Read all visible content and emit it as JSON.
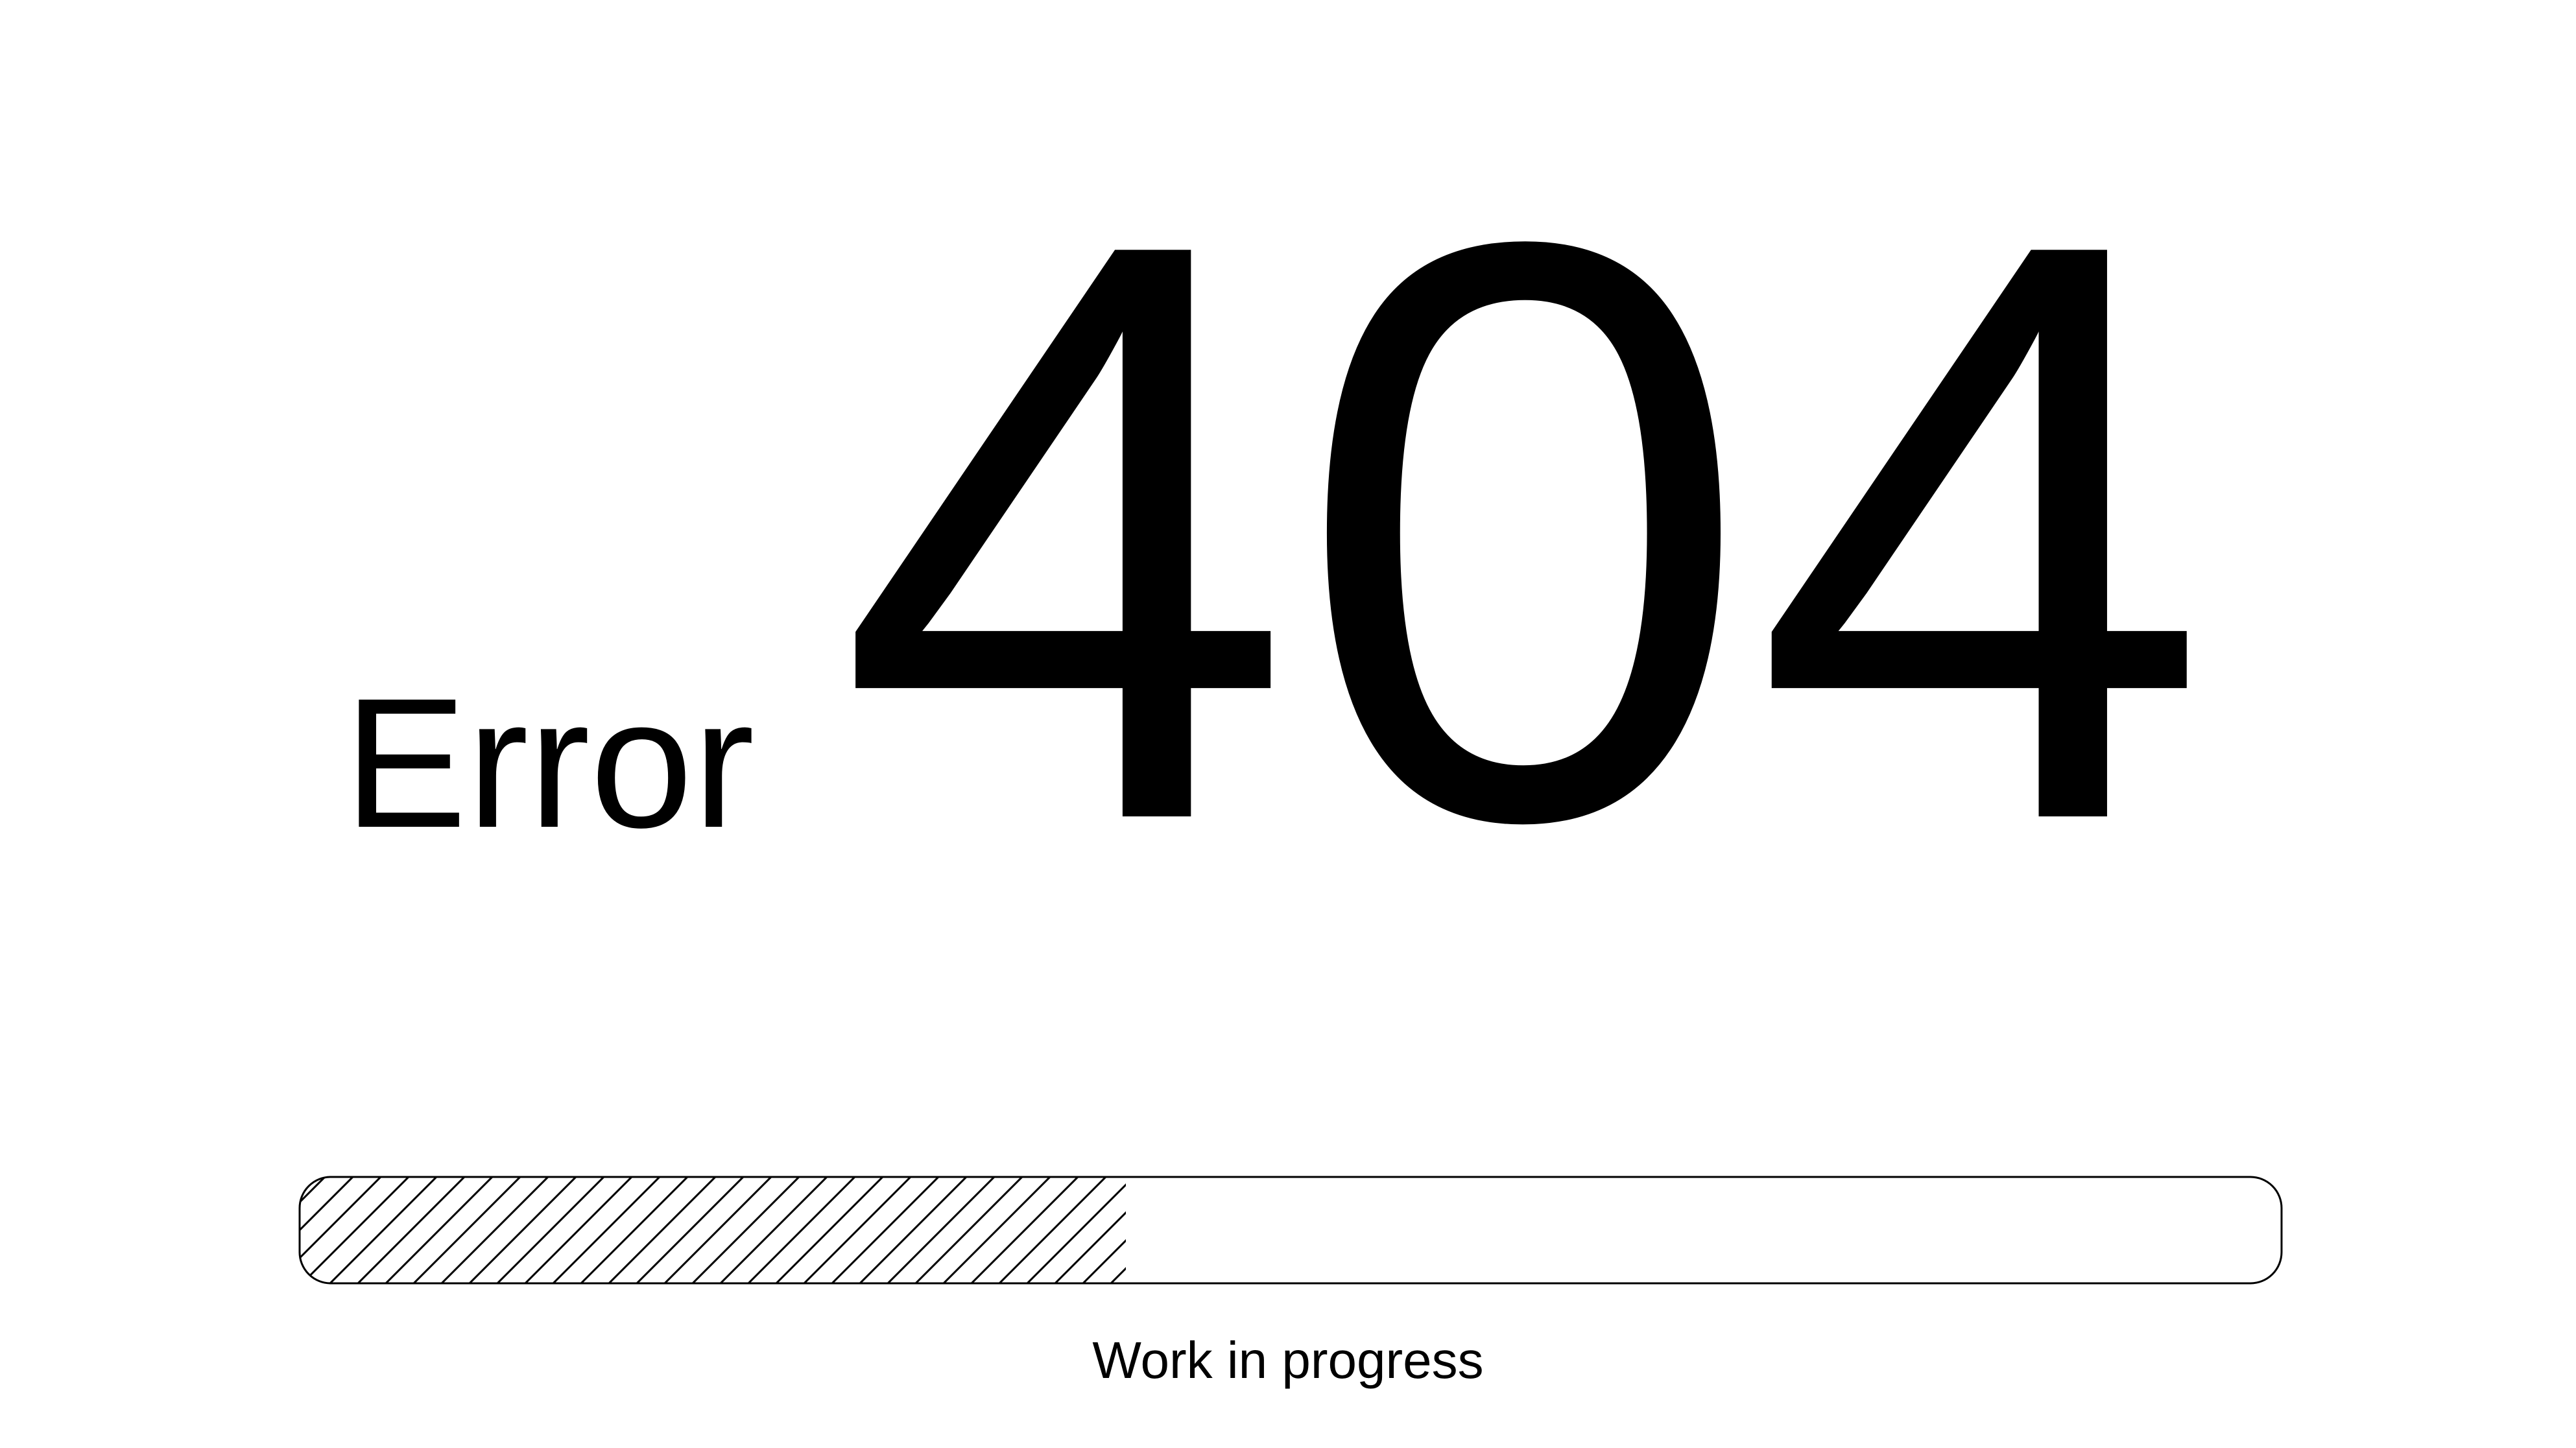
{
  "error": {
    "word": "Error",
    "code": "404"
  },
  "progress": {
    "fraction": 0.417,
    "caption": "Work in progress",
    "fill_pattern": "diagonal-hatch",
    "border_color": "#000000",
    "fill_color": "#ffffff"
  }
}
